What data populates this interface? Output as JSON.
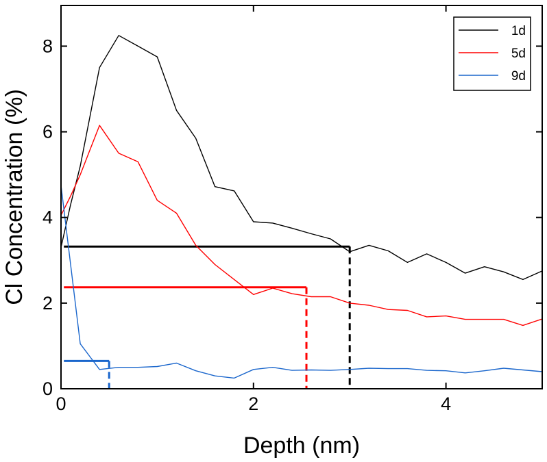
{
  "chart_data": {
    "type": "line",
    "xlabel": "Depth (nm)",
    "ylabel": "Cl Concentration (%)",
    "xlim": [
      0,
      5
    ],
    "ylim": [
      0,
      8.95
    ],
    "xticks": [
      0,
      2,
      4
    ],
    "yticks": [
      0,
      2,
      4,
      6,
      8
    ],
    "xtick_labels": [
      "0",
      "2",
      "4"
    ],
    "ytick_labels": [
      "0",
      "2",
      "4",
      "6",
      "8"
    ],
    "grid": false,
    "legend_position": "top-right",
    "series": [
      {
        "name": "1d",
        "color": "#000000",
        "x": [
          0,
          0.1,
          0.2,
          0.4,
          0.6,
          0.8,
          1.0,
          1.2,
          1.4,
          1.6,
          1.8,
          2.0,
          2.2,
          2.4,
          2.6,
          2.8,
          3.0,
          3.2,
          3.4,
          3.6,
          3.8,
          4.0,
          4.2,
          4.4,
          4.6,
          4.8,
          5.0
        ],
        "y": [
          3.3,
          4.3,
          5.2,
          7.5,
          8.25,
          8.0,
          7.75,
          6.5,
          5.85,
          4.72,
          4.62,
          3.9,
          3.87,
          3.75,
          3.62,
          3.5,
          3.2,
          3.35,
          3.22,
          2.95,
          3.15,
          2.95,
          2.7,
          2.85,
          2.73,
          2.55,
          2.75
        ]
      },
      {
        "name": "5d",
        "color": "#ff0000",
        "x": [
          0,
          0.1,
          0.2,
          0.4,
          0.6,
          0.8,
          1.0,
          1.2,
          1.4,
          1.6,
          1.8,
          2.0,
          2.2,
          2.4,
          2.6,
          2.8,
          3.0,
          3.2,
          3.4,
          3.6,
          3.8,
          4.0,
          4.2,
          4.4,
          4.6,
          4.8,
          5.0
        ],
        "y": [
          4.05,
          4.5,
          5.0,
          6.15,
          5.5,
          5.3,
          4.4,
          4.1,
          3.35,
          2.9,
          2.55,
          2.2,
          2.35,
          2.22,
          2.15,
          2.15,
          2.0,
          1.95,
          1.85,
          1.83,
          1.68,
          1.7,
          1.62,
          1.62,
          1.62,
          1.48,
          1.63
        ]
      },
      {
        "name": "9d",
        "color": "#1a66cc",
        "x": [
          0,
          0.1,
          0.2,
          0.4,
          0.6,
          0.8,
          1.0,
          1.2,
          1.4,
          1.6,
          1.8,
          2.0,
          2.2,
          2.4,
          2.6,
          2.8,
          3.0,
          3.2,
          3.4,
          3.6,
          3.8,
          4.0,
          4.2,
          4.4,
          4.6,
          4.8,
          5.0
        ],
        "y": [
          4.75,
          2.9,
          1.05,
          0.45,
          0.5,
          0.5,
          0.52,
          0.6,
          0.42,
          0.3,
          0.25,
          0.45,
          0.5,
          0.43,
          0.44,
          0.43,
          0.45,
          0.48,
          0.47,
          0.47,
          0.43,
          0.42,
          0.37,
          0.42,
          0.48,
          0.44,
          0.4
        ]
      }
    ],
    "annotations": [
      {
        "name": "1d-threshold",
        "color": "#000000",
        "level": 3.32,
        "x_start": 0.03,
        "x_end": 3.0
      },
      {
        "name": "5d-threshold",
        "color": "#ff0000",
        "level": 2.37,
        "x_start": 0.03,
        "x_end": 2.55
      },
      {
        "name": "9d-threshold",
        "color": "#1a66cc",
        "level": 0.65,
        "x_start": 0.03,
        "x_end": 0.5
      }
    ]
  }
}
